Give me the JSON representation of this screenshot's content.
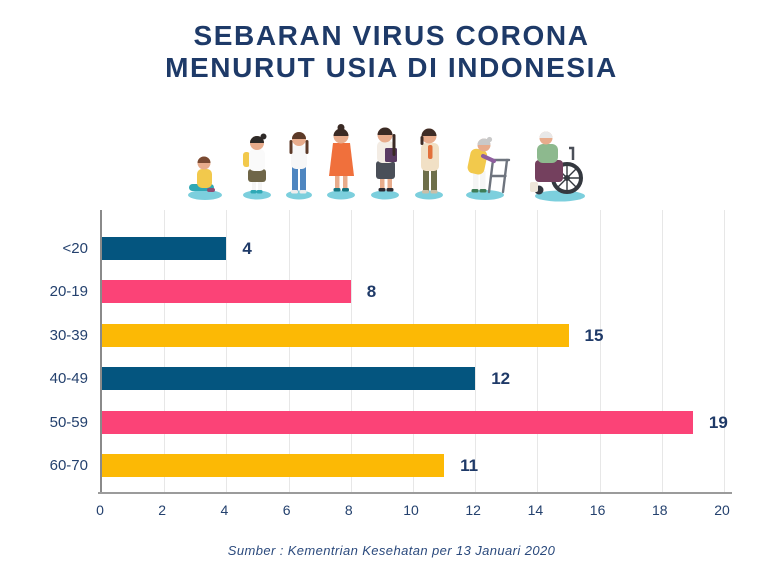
{
  "title": {
    "line1": "SEBARAN VIRUS CORONA",
    "line2": "MENURUT USIA DI INDONESIA"
  },
  "illustration": {
    "figures": [
      "sitting-child",
      "school-girl",
      "teenager",
      "young-woman-orange-dress",
      "adult-woman-with-folder",
      "middle-aged-woman-blazer",
      "senior-with-walker",
      "elderly-in-wheelchair"
    ]
  },
  "chart_data": {
    "type": "bar",
    "orientation": "horizontal",
    "title": "SEBARAN VIRUS CORONA MENURUT USIA DI INDONESIA",
    "categories": [
      "<20",
      "20-19",
      "30-39",
      "40-49",
      "50-59",
      "60-70"
    ],
    "values": [
      4,
      8,
      15,
      12,
      19,
      11
    ],
    "bar_colors": [
      "#04557F",
      "#FB4377",
      "#FCB905",
      "#04557F",
      "#FB4377",
      "#FCB905"
    ],
    "xlabel": "",
    "ylabel": "",
    "xlim": [
      0,
      20
    ],
    "xticks": [
      0,
      2,
      4,
      6,
      8,
      10,
      12,
      14,
      16,
      18,
      20
    ],
    "grid": "vertical-only",
    "legend": "none",
    "value_labels": "end-of-bar"
  },
  "source": "Sumber : Kementrian Kesehatan per 13 Januari 2020",
  "colors": {
    "navy": "#04557F",
    "pink": "#FB4377",
    "yellow": "#FCB905",
    "title_text": "#1E3A68",
    "label_text": "#24416E",
    "value_text": "#1F3A68",
    "gridline": "#E7E7E7",
    "axis": "#9B9B9B",
    "shadow_teal": "#7CCFDD",
    "background": "#FFFFFF"
  }
}
